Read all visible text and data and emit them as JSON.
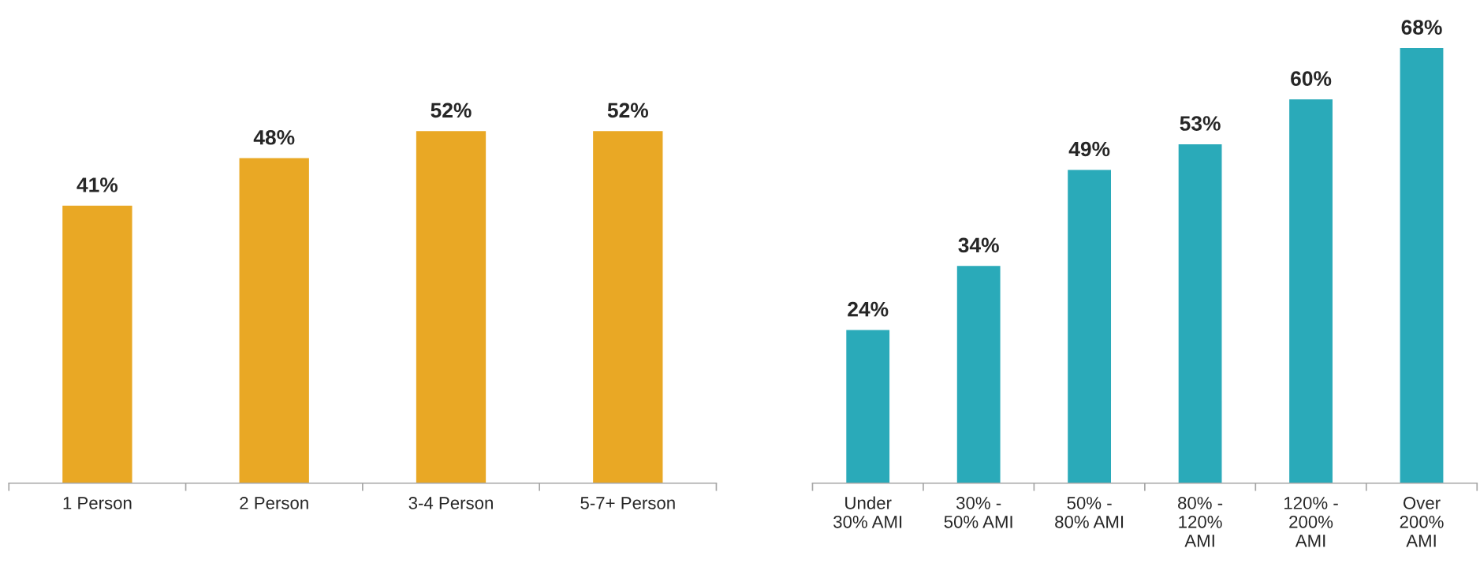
{
  "chart_data": [
    {
      "type": "bar",
      "categories": [
        "1 Person",
        "2 Person",
        "3-4 Person",
        "5-7+ Person"
      ],
      "values": [
        41,
        48,
        52,
        52
      ],
      "color": "#e9a825",
      "value_labels": [
        "41%",
        "48%",
        "52%",
        "52%"
      ],
      "grid": false,
      "legend": false
    },
    {
      "type": "bar",
      "categories": [
        "Under\n30% AMI",
        "30% -\n50% AMI",
        "50% -\n80% AMI",
        "80% -\n120%\nAMI",
        "120% -\n200%\nAMI",
        "Over\n200%\nAMI"
      ],
      "values": [
        24,
        34,
        49,
        53,
        60,
        68
      ],
      "color": "#2aaab9",
      "value_labels": [
        "24%",
        "34%",
        "49%",
        "53%",
        "60%",
        "68%"
      ],
      "grid": false,
      "legend": false
    }
  ]
}
